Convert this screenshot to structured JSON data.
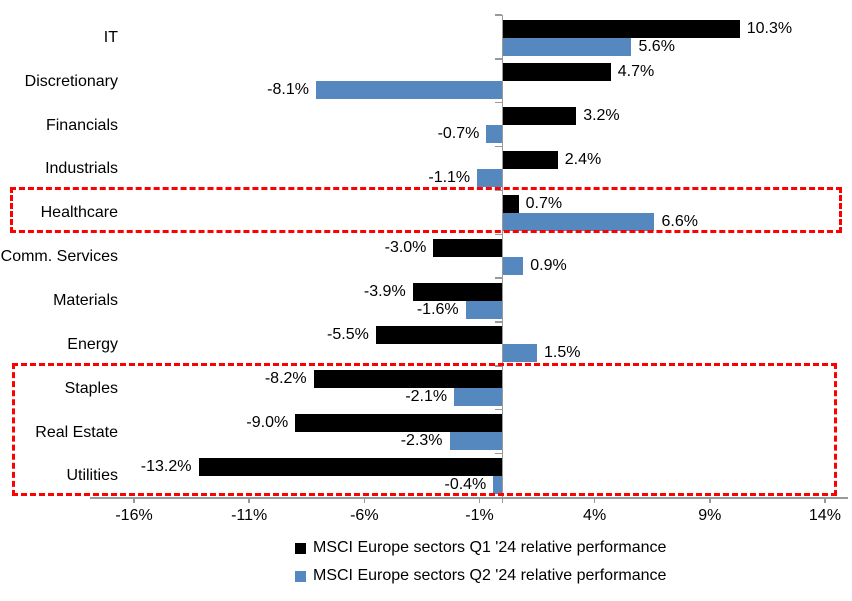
{
  "chart_data": {
    "type": "bar",
    "orientation": "horizontal",
    "title": "",
    "categories": [
      "IT",
      "Discretionary",
      "Financials",
      "Industrials",
      "Healthcare",
      "Comm. Services",
      "Materials",
      "Energy",
      "Staples",
      "Real Estate",
      "Utilities"
    ],
    "series": [
      {
        "name": "MSCI Europe sectors Q1 '24 relative performance",
        "color": "#000000",
        "values": [
          10.3,
          4.7,
          3.2,
          2.4,
          0.7,
          -3.0,
          -3.9,
          -5.5,
          -8.2,
          -9.0,
          -13.2
        ],
        "data_labels": [
          "10.3%",
          "4.7%",
          "3.2%",
          "2.4%",
          "0.7%",
          "-3.0%",
          "-3.9%",
          "-5.5%",
          "-8.2%",
          "-9.0%",
          "-13.2%"
        ]
      },
      {
        "name": "MSCI Europe sectors Q2 '24 relative performance",
        "color": "#5588BE",
        "values": [
          5.6,
          -8.1,
          -0.7,
          -1.1,
          6.6,
          0.9,
          -1.6,
          1.5,
          -2.1,
          -2.3,
          -0.4
        ],
        "data_labels": [
          "5.6%",
          "-8.1%",
          "-0.7%",
          "-1.1%",
          "6.6%",
          "0.9%",
          "-1.6%",
          "1.5%",
          "-2.1%",
          "-2.3%",
          "-0.4%"
        ]
      }
    ],
    "x_axis": {
      "tick_labels": [
        "-16%",
        "-11%",
        "-6%",
        "-1%",
        "4%",
        "9%",
        "14%"
      ],
      "tick_values": [
        -16,
        -11,
        -6,
        -1,
        4,
        9,
        14
      ],
      "axis_color": "#999999"
    },
    "legend_position": "bottom",
    "gridlines": false,
    "annotations": {
      "highlight_boxes": [
        {
          "name": "healthcare-highlight",
          "categories": [
            "Healthcare"
          ],
          "rows": [
            4,
            4
          ],
          "color": "#FF0000",
          "style": "dashed"
        },
        {
          "name": "defensives-highlight",
          "categories": [
            "Staples",
            "Real Estate",
            "Utilities"
          ],
          "rows": [
            8,
            10
          ],
          "color": "#FF0000",
          "style": "dashed"
        }
      ]
    }
  }
}
